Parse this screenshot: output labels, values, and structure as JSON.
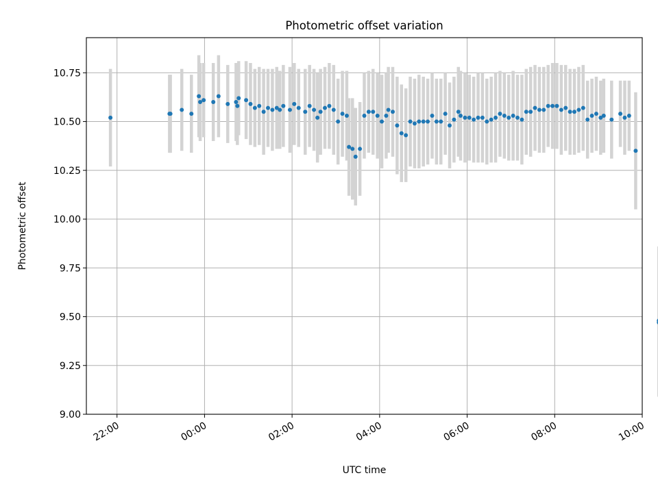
{
  "chart_data": {
    "type": "scatter",
    "title": "Photometric offset variation",
    "xlabel": "UTC time",
    "ylabel": "Photometric offset",
    "x_unit": "UTC time (hours; 24 = 00:00 of the next day)",
    "xlim": [
      21.3,
      34.0
    ],
    "ylim": [
      9.0,
      10.93
    ],
    "x_ticks": [
      {
        "value": 22,
        "label": "22:00"
      },
      {
        "value": 24,
        "label": "00:00"
      },
      {
        "value": 26,
        "label": "02:00"
      },
      {
        "value": 28,
        "label": "04:00"
      },
      {
        "value": 30,
        "label": "06:00"
      },
      {
        "value": 32,
        "label": "08:00"
      },
      {
        "value": 34,
        "label": "10:00"
      }
    ],
    "y_ticks": [
      "9.00",
      "9.25",
      "9.50",
      "9.75",
      "10.00",
      "10.25",
      "10.50",
      "10.75"
    ],
    "grid": true,
    "legend": "none",
    "point_color": "#1f77b4",
    "errorbar_color": "#d3d3d3",
    "series": [
      {
        "x": [
          21.85,
          23.2,
          23.22,
          23.48,
          23.7,
          23.87,
          23.9,
          23.98,
          24.2,
          24.32,
          24.53,
          24.72,
          24.75,
          24.78
        ],
        "y": [
          10.52,
          10.54,
          10.54,
          10.56,
          10.54,
          10.63,
          10.6,
          10.61,
          10.6,
          10.63,
          10.59,
          10.6,
          10.58,
          10.62
        ],
        "yerr": [
          0.25,
          0.2,
          0.2,
          0.21,
          0.2,
          0.21,
          0.2,
          0.19,
          0.2,
          0.21,
          0.2,
          0.2,
          0.2,
          0.19
        ]
      },
      {
        "x": [
          24.95,
          25.05,
          25.15,
          25.25,
          25.35,
          25.45,
          25.55,
          25.65,
          25.72,
          25.8,
          25.95,
          26.05,
          26.15,
          26.3,
          26.4,
          26.5,
          26.58,
          26.65,
          26.75,
          26.85,
          26.95,
          27.05,
          27.15,
          27.25,
          27.3,
          27.38,
          27.45,
          27.55,
          27.65,
          27.75,
          27.85,
          27.95,
          28.05,
          28.15,
          28.2,
          28.3,
          28.4,
          28.5,
          28.6,
          28.7,
          28.8,
          28.9,
          29.0,
          29.1,
          29.2,
          29.3,
          29.4,
          29.5,
          29.6,
          29.7,
          29.8,
          29.85,
          29.95,
          30.05,
          30.15,
          30.25,
          30.35,
          30.45,
          30.55,
          30.65,
          30.75,
          30.85,
          30.95,
          31.05,
          31.15,
          31.25,
          31.35,
          31.45,
          31.55,
          31.65,
          31.75,
          31.85,
          31.95,
          32.05,
          32.15,
          32.25,
          32.35,
          32.45,
          32.55,
          32.65,
          32.75,
          32.85,
          32.95,
          33.05,
          33.12
        ],
        "y": [
          10.61,
          10.59,
          10.57,
          10.58,
          10.55,
          10.57,
          10.56,
          10.57,
          10.56,
          10.58,
          10.56,
          10.59,
          10.57,
          10.55,
          10.58,
          10.56,
          10.52,
          10.55,
          10.57,
          10.58,
          10.56,
          10.5,
          10.54,
          10.53,
          10.37,
          10.36,
          10.32,
          10.36,
          10.53,
          10.55,
          10.55,
          10.53,
          10.5,
          10.53,
          10.56,
          10.55,
          10.48,
          10.44,
          10.43,
          10.5,
          10.49,
          10.5,
          10.5,
          10.5,
          10.53,
          10.5,
          10.5,
          10.54,
          10.48,
          10.51,
          10.55,
          10.53,
          10.52,
          10.52,
          10.51,
          10.52,
          10.52,
          10.5,
          10.51,
          10.52,
          10.54,
          10.53,
          10.52,
          10.53,
          10.52,
          10.51,
          10.55,
          10.55,
          10.57,
          10.56,
          10.56,
          10.58,
          10.58,
          10.58,
          10.56,
          10.57,
          10.55,
          10.55,
          10.56,
          10.57,
          10.51,
          10.53,
          10.54,
          10.52,
          10.53
        ],
        "yerr": [
          0.2,
          0.21,
          0.2,
          0.2,
          0.22,
          0.2,
          0.21,
          0.21,
          0.2,
          0.21,
          0.22,
          0.21,
          0.2,
          0.22,
          0.21,
          0.21,
          0.23,
          0.22,
          0.21,
          0.22,
          0.23,
          0.22,
          0.22,
          0.23,
          0.25,
          0.26,
          0.25,
          0.24,
          0.22,
          0.21,
          0.22,
          0.22,
          0.24,
          0.22,
          0.22,
          0.23,
          0.25,
          0.25,
          0.24,
          0.23,
          0.23,
          0.24,
          0.23,
          0.22,
          0.22,
          0.22,
          0.22,
          0.21,
          0.22,
          0.22,
          0.23,
          0.23,
          0.23,
          0.22,
          0.22,
          0.23,
          0.23,
          0.22,
          0.22,
          0.23,
          0.22,
          0.22,
          0.22,
          0.23,
          0.22,
          0.23,
          0.22,
          0.23,
          0.22,
          0.22,
          0.22,
          0.21,
          0.22,
          0.22,
          0.23,
          0.22,
          0.22,
          0.22,
          0.22,
          0.22,
          0.2,
          0.19,
          0.19,
          0.19,
          0.19
        ]
      },
      {
        "x": [
          33.3,
          33.5,
          33.6,
          33.7,
          33.85,
          34.38,
          34.38
        ],
        "y": [
          10.51,
          10.54,
          10.52,
          10.53,
          10.35,
          9.48,
          9.47
        ],
        "yerr": [
          0.2,
          0.17,
          0.19,
          0.18,
          0.3,
          0.38,
          0.38
        ]
      }
    ]
  }
}
